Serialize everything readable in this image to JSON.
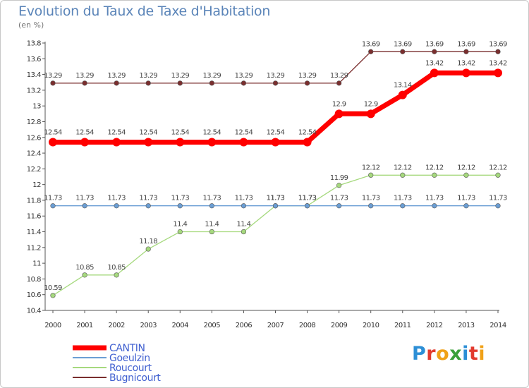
{
  "title": "Evolution du Taux de Taxe d'Habitation",
  "unit_label": "(en %)",
  "logo": {
    "text": "Proxiti",
    "letter_colors": [
      "#2d8fd6",
      "#e23a2e",
      "#f0a118",
      "#3aa03a",
      "#2d8fd6",
      "#e23a2e",
      "#f0a118"
    ]
  },
  "chart_data": {
    "type": "line",
    "title": "Evolution du Taux de Taxe d'Habitation",
    "ylabel": "(en %)",
    "xlabel": "",
    "x": [
      2000,
      2001,
      2002,
      2003,
      2004,
      2005,
      2006,
      2007,
      2008,
      2009,
      2010,
      2011,
      2012,
      2013,
      2014
    ],
    "ylim": [
      10.4,
      13.8
    ],
    "yticks": [
      10.4,
      10.6,
      10.8,
      11,
      11.2,
      11.4,
      11.6,
      11.8,
      12,
      12.2,
      12.4,
      12.6,
      12.8,
      13,
      13.2,
      13.4,
      13.6,
      13.8
    ],
    "grid": false,
    "legend_position": "bottom-left",
    "series": [
      {
        "name": "CANTIN",
        "color": "#ff0000",
        "style": "thick",
        "values": [
          12.54,
          12.54,
          12.54,
          12.54,
          12.54,
          12.54,
          12.54,
          12.54,
          12.54,
          12.9,
          12.9,
          13.14,
          13.42,
          13.42,
          13.42
        ],
        "labels": [
          "12.54",
          "12.54",
          "12.54",
          "12.54",
          "12.54",
          "12.54",
          "12.54",
          "12.54",
          "12.54",
          "12.9",
          "12.9",
          "13.14",
          "13.42",
          "13.42",
          "13.42"
        ]
      },
      {
        "name": "Goeulzin",
        "color": "#6b9ed4",
        "style": "thin",
        "values": [
          11.73,
          11.73,
          11.73,
          11.73,
          11.73,
          11.73,
          11.73,
          11.73,
          11.73,
          11.73,
          11.73,
          11.73,
          11.73,
          11.73,
          11.73
        ],
        "labels": [
          "11.73",
          "11.73",
          "11.73",
          "11.73",
          "11.73",
          "11.73",
          "11.73",
          "11.73",
          "11.73",
          "11.73",
          "11.73",
          "11.73",
          "11.73",
          "11.73",
          "11.73"
        ]
      },
      {
        "name": "Roucourt",
        "color": "#a6d97e",
        "style": "thin",
        "values": [
          10.59,
          10.85,
          10.85,
          11.18,
          11.4,
          11.4,
          11.4,
          11.73,
          11.73,
          11.99,
          12.12,
          12.12,
          12.12,
          12.12,
          12.12
        ],
        "labels": [
          "10.59",
          "10.85",
          "10.85",
          "11.18",
          "11.4",
          "11.4",
          "11.4",
          "11.73",
          "11.73",
          "11.99",
          "12.12",
          "12.12",
          "12.12",
          "12.12",
          "12.12"
        ]
      },
      {
        "name": "Bugnicourt",
        "color": "#7a2e2e",
        "style": "thin",
        "values": [
          13.29,
          13.29,
          13.29,
          13.29,
          13.29,
          13.29,
          13.29,
          13.29,
          13.29,
          13.29,
          13.69,
          13.69,
          13.69,
          13.69,
          13.69
        ],
        "labels": [
          "13.29",
          "13.29",
          "13.29",
          "13.29",
          "13.29",
          "13.29",
          "13.29",
          "13.29",
          "13.29",
          "13.29",
          "13.69",
          "13.69",
          "13.69",
          "13.69",
          "13.69"
        ]
      }
    ]
  }
}
